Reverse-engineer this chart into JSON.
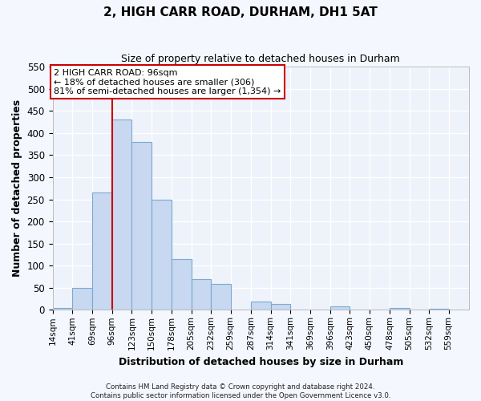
{
  "title": "2, HIGH CARR ROAD, DURHAM, DH1 5AT",
  "subtitle": "Size of property relative to detached houses in Durham",
  "xlabel": "Distribution of detached houses by size in Durham",
  "ylabel": "Number of detached properties",
  "bar_color": "#c8d8f0",
  "bar_edge_color": "#7aaad0",
  "background_color": "#eef2fa",
  "grid_color": "#ffffff",
  "annotation_line_color": "#cc0000",
  "annotation_box_color": "#cc0000",
  "annotation_line1": "2 HIGH CARR ROAD: 96sqm",
  "annotation_line2": "← 18% of detached houses are smaller (306)",
  "annotation_line3": "81% of semi-detached houses are larger (1,354) →",
  "property_value_idx": 3,
  "categories": [
    "14sqm",
    "41sqm",
    "69sqm",
    "96sqm",
    "123sqm",
    "150sqm",
    "178sqm",
    "205sqm",
    "232sqm",
    "259sqm",
    "287sqm",
    "314sqm",
    "341sqm",
    "369sqm",
    "396sqm",
    "423sqm",
    "450sqm",
    "478sqm",
    "505sqm",
    "532sqm",
    "559sqm"
  ],
  "bin_edges": [
    14,
    41,
    69,
    96,
    123,
    150,
    178,
    205,
    232,
    259,
    287,
    314,
    341,
    369,
    396,
    423,
    450,
    478,
    505,
    532,
    559,
    587
  ],
  "values": [
    5,
    50,
    265,
    430,
    380,
    250,
    115,
    70,
    58,
    0,
    18,
    13,
    0,
    0,
    8,
    0,
    0,
    5,
    0,
    3,
    0
  ],
  "ylim": [
    0,
    550
  ],
  "yticks": [
    0,
    50,
    100,
    150,
    200,
    250,
    300,
    350,
    400,
    450,
    500,
    550
  ],
  "fig_bg": "#f5f7ff",
  "footer_line1": "Contains HM Land Registry data © Crown copyright and database right 2024.",
  "footer_line2": "Contains public sector information licensed under the Open Government Licence v3.0."
}
